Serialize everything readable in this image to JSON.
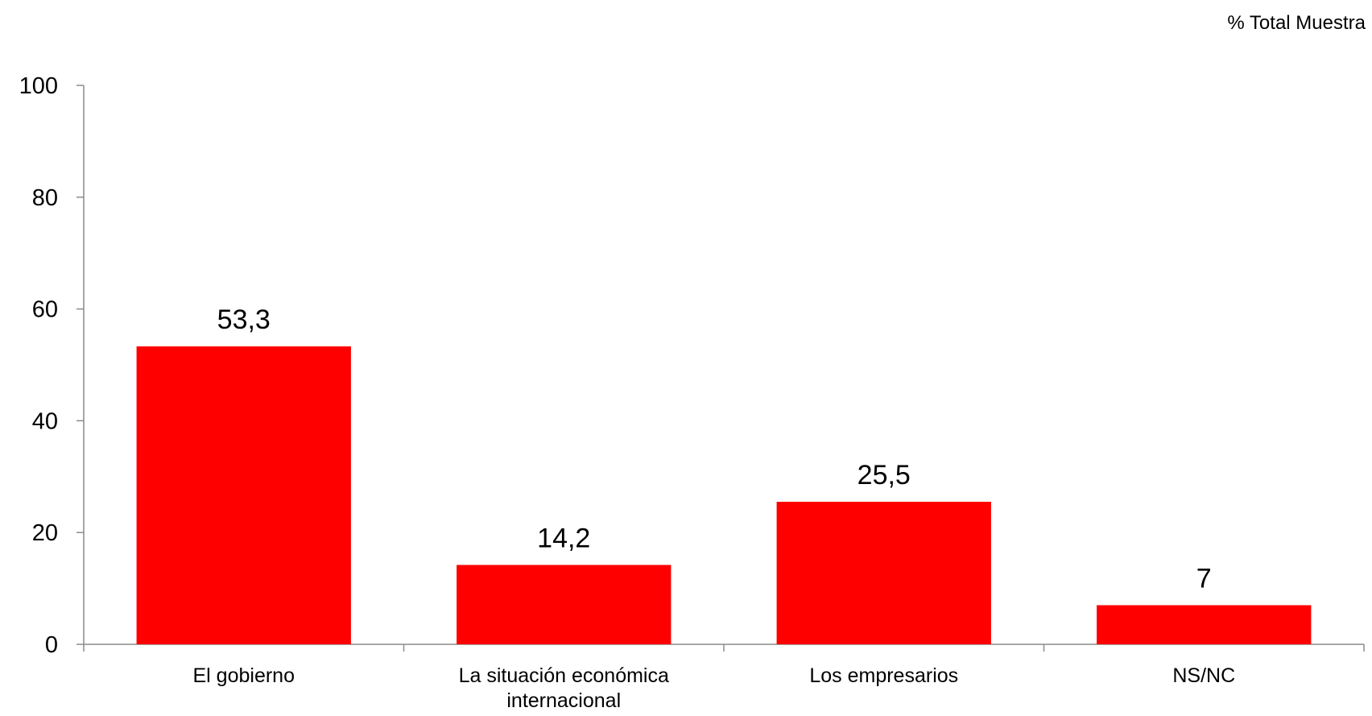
{
  "chart_data": {
    "type": "bar",
    "unit_note": "% Total Muestra",
    "categories": [
      [
        "El gobierno"
      ],
      [
        "La situación económica",
        "internacional"
      ],
      [
        "Los empresarios"
      ],
      [
        "NS/NC"
      ]
    ],
    "values": [
      53.3,
      14.2,
      25.5,
      7
    ],
    "data_labels": [
      "53,3",
      "14,2",
      "25,5",
      "7"
    ],
    "ylim": [
      0,
      100
    ],
    "yticks": [
      0,
      20,
      40,
      60,
      80,
      100
    ],
    "bar_color": "#ff0000",
    "axis_color": "#8c8c8c",
    "grid": false,
    "legend": "none"
  }
}
